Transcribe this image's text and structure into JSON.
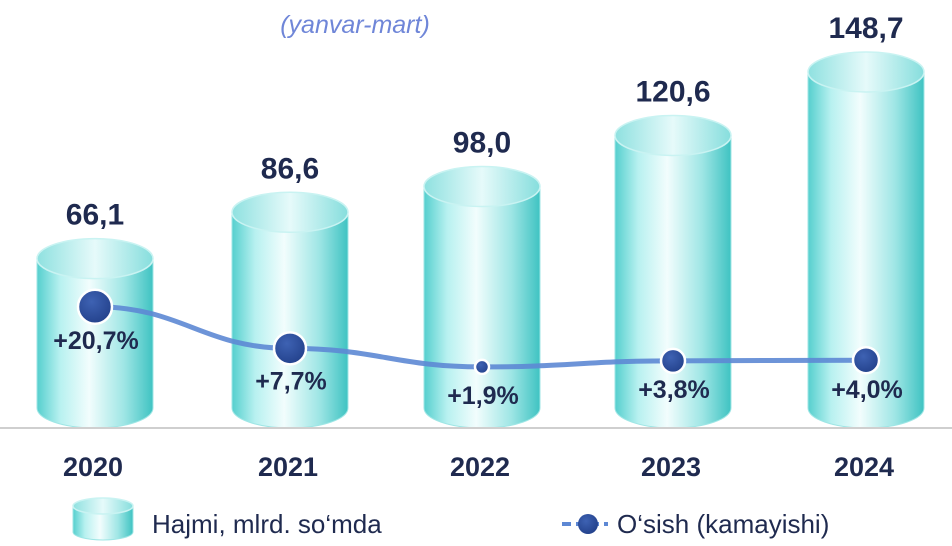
{
  "subtitle": "(yanvar-mart)",
  "colors": {
    "cylinder_light": "#E8FBFB",
    "cylinder_mid": "#A9EDEC",
    "cylinder_dark": "#47C9C8",
    "cylinder_edge": "#9FE6E5",
    "line": "#5D88D4",
    "marker": "#2A4C97",
    "axis": "#CFCFCF",
    "text": "#1F2A4F",
    "subtitle": "#6F86D8"
  },
  "chart_data": {
    "type": "bar",
    "categories": [
      "2020",
      "2021",
      "2022",
      "2023",
      "2024"
    ],
    "series": [
      {
        "name": "Hajmi, mlrd. so‘mda",
        "type": "bar",
        "values": [
          66.1,
          86.6,
          98.0,
          120.6,
          148.7
        ],
        "labels": [
          "66,1",
          "86,6",
          "98,0",
          "120,6",
          "148,7"
        ]
      },
      {
        "name": "O‘sish (kamayishi)",
        "type": "line",
        "values": [
          20.7,
          7.7,
          1.9,
          3.8,
          4.0
        ],
        "labels": [
          "+20,7%",
          "+7,7%",
          "+1,9%",
          "+3,8%",
          "+4,0%"
        ]
      }
    ],
    "legend": {
      "position": "bottom",
      "items": [
        "Hajmi, mlrd. so‘mda",
        "O‘sish (kamayishi)"
      ]
    },
    "grid": false
  }
}
